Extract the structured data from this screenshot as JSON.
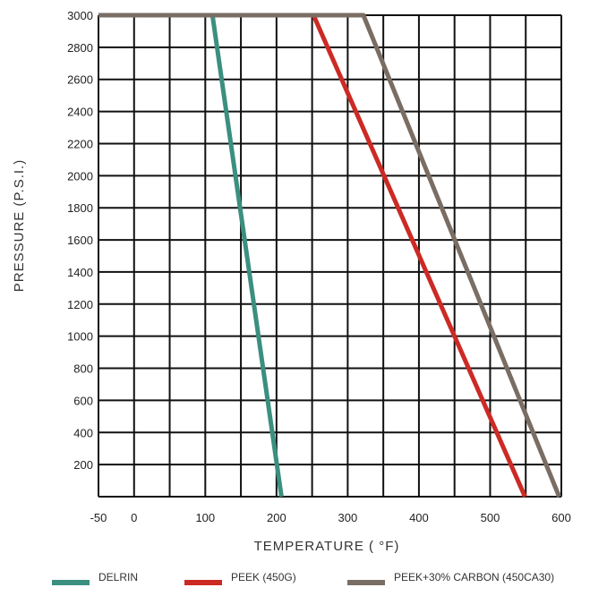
{
  "chart_data": {
    "type": "line",
    "title": "",
    "xlabel": "TEMPERATURE (  °F)",
    "ylabel": "PRESSURE (P.S.I.)",
    "xlim": [
      -50,
      600
    ],
    "ylim": [
      0,
      3000
    ],
    "x_ticks": [
      "-50",
      "0",
      "100",
      "200",
      "300",
      "400",
      "500",
      "600"
    ],
    "x_tick_values": [
      -50,
      0,
      100,
      200,
      300,
      400,
      500,
      600
    ],
    "y_ticks": [
      "200",
      "400",
      "600",
      "800",
      "1000",
      "1200",
      "1400",
      "1600",
      "1800",
      "2000",
      "2200",
      "2400",
      "2600",
      "2800",
      "3000"
    ],
    "y_tick_values": [
      200,
      400,
      600,
      800,
      1000,
      1200,
      1400,
      1600,
      1800,
      2000,
      2200,
      2400,
      2600,
      2800,
      3000
    ],
    "grid": true,
    "legend_position": "bottom",
    "series": [
      {
        "name": "DELRIN",
        "color": "#3b8f7f",
        "x": [
          -50,
          110,
          207
        ],
        "y": [
          3000,
          3000,
          0
        ]
      },
      {
        "name": "PEEK (450G)",
        "color": "#cc2a25",
        "x": [
          -50,
          252,
          549
        ],
        "y": [
          3000,
          3000,
          0
        ]
      },
      {
        "name": "PEEK+30% CARBON (450CA30)",
        "color": "#7a6d63",
        "x": [
          -50,
          322,
          597
        ],
        "y": [
          3000,
          3000,
          0
        ]
      }
    ]
  }
}
